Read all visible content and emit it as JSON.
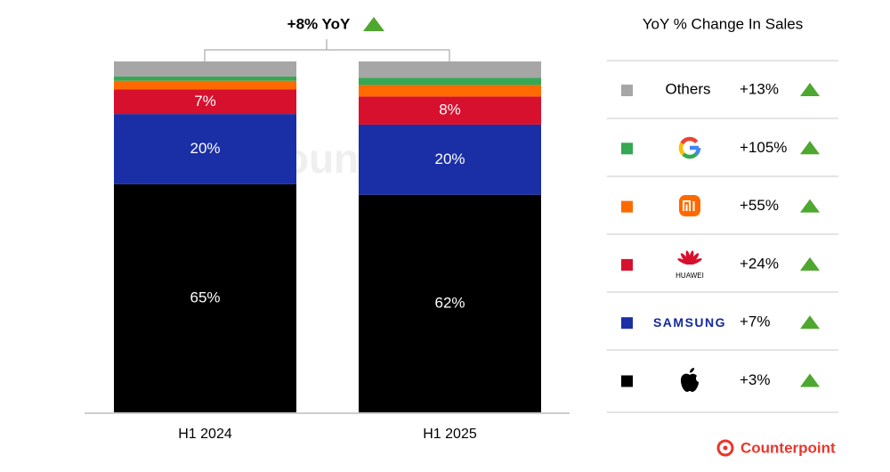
{
  "chart_data": {
    "type": "stacked_bar",
    "annotation": "+8% YoY",
    "categories": [
      "H1 2024",
      "H1 2025"
    ],
    "ylim": [
      0,
      100
    ],
    "series": [
      {
        "name": null,
        "color": "#000000",
        "values": [
          65,
          62
        ],
        "value_labels": [
          "65%",
          "62%"
        ]
      },
      {
        "name": "SAMSUNG",
        "color": "#1a2ea6",
        "values": [
          20,
          20
        ],
        "value_labels": [
          "20%",
          "20%"
        ]
      },
      {
        "name": "HUAWEI",
        "color": "#d7102e",
        "values": [
          7,
          8
        ],
        "value_labels": [
          "7%",
          "8%"
        ]
      },
      {
        "name": null,
        "color": "#ff6a00",
        "values": [
          2.5,
          3.3
        ],
        "value_labels": [
          null,
          null
        ]
      },
      {
        "name": null,
        "color": "#34a853",
        "values": [
          1.2,
          2
        ],
        "value_labels": [
          null,
          null
        ]
      },
      {
        "name": "Others",
        "color": "#a6a6a6",
        "values": [
          4.3,
          4.7
        ],
        "value_labels": [
          null,
          null
        ]
      }
    ],
    "yoy": {
      "title": "YoY % Change In Sales",
      "values": [
        3,
        7,
        24,
        55,
        105,
        13
      ],
      "value_labels": [
        "+3%",
        "+7%",
        "+24%",
        "+55%",
        "+105%",
        "+13%"
      ]
    },
    "brand": "Counterpoint"
  }
}
